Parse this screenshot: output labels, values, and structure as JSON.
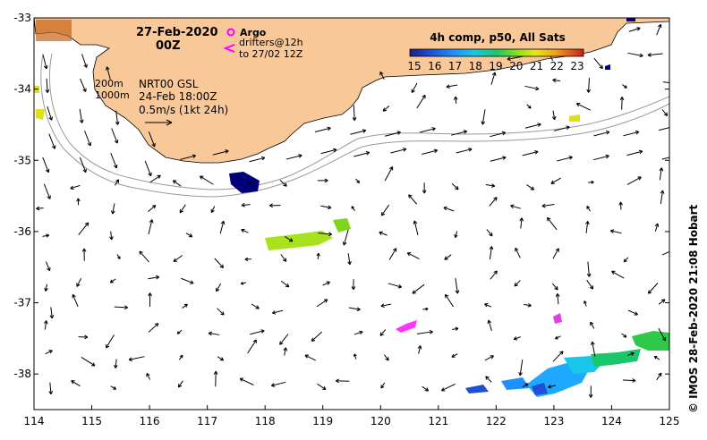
{
  "map": {
    "date": "27-Feb-2020",
    "time": "00Z",
    "legend_argo": "Argo",
    "legend_drifters": "drifters@12h",
    "legend_drifters_range": "to 27/02 12Z",
    "contour_200": "200m",
    "contour_1000": "1000m",
    "current_source": "NRT00 GSL",
    "current_time": "24-Feb 18:00Z",
    "vector_scale": "0.5m/s (1kt 24h)",
    "colorbar_title": "4h comp, p50, All Sats",
    "credit": "© IMOS 28-Feb-2020 21:08 Hobart",
    "colors": {
      "land": "#f9c899",
      "ocean": "#ffffff",
      "argo": "#ff00ff",
      "drifter": "#ff00ff"
    },
    "lon_ticks": [
      "114",
      "115",
      "116",
      "117",
      "118",
      "119",
      "120",
      "121",
      "122",
      "123",
      "124",
      "125"
    ],
    "lat_ticks": [
      "-33",
      "-34",
      "-35",
      "-36",
      "-37",
      "-38"
    ],
    "colorbar_ticks": [
      "15",
      "16",
      "17",
      "18",
      "19",
      "20",
      "21",
      "22",
      "23"
    ]
  }
}
